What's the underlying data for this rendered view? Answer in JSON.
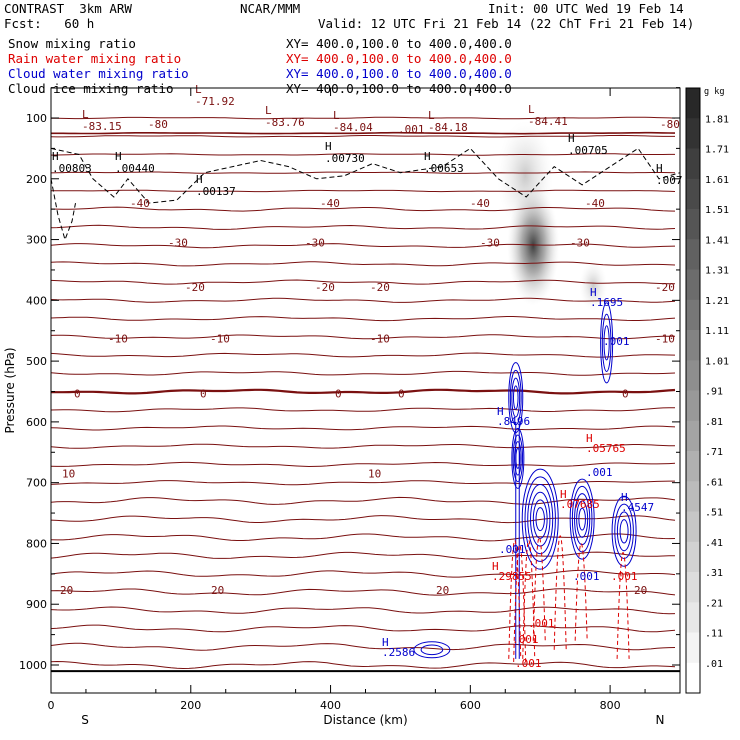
{
  "header": {
    "model": "CONTRAST  3km ARW",
    "org": "NCAR/MMM",
    "init": "Init: 00 UTC Wed 19 Feb 14",
    "fcst": "Fcst:   60 h",
    "valid": "Valid: 12 UTC Fri 21 Feb 14 (22 ChT Fri 21 Feb 14)"
  },
  "fields": [
    {
      "name": "Snow mixing ratio",
      "xy": "XY= 400.0,100.0 to 400.0,400.0",
      "color": "#000000"
    },
    {
      "name": "Rain water mixing ratio",
      "xy": "XY= 400.0,100.0 to 400.0,400.0",
      "color": "#dd0000"
    },
    {
      "name": "Cloud water mixing ratio",
      "xy": "XY= 400.0,100.0 to 400.0,400.0",
      "color": "#0000cc"
    },
    {
      "name": "Cloud ice mixing ratio",
      "xy": "XY= 400.0,100.0 to 400.0,400.0",
      "color": "#000000"
    }
  ],
  "chart_data": {
    "type": "cross-section contour",
    "xlabel": "Distance (km)",
    "ylabel": "Pressure (hPa)",
    "xlim": [
      0,
      900
    ],
    "ylim": [
      1000,
      50
    ],
    "x_ticks": [
      0,
      200,
      400,
      600,
      800
    ],
    "x_tick_labels": [
      "0",
      "200",
      "400",
      "600",
      "800"
    ],
    "y_ticks": [
      100,
      200,
      300,
      400,
      500,
      600,
      700,
      800,
      900,
      1000
    ],
    "y_tick_labels": [
      "100",
      "200",
      "300",
      "400",
      "500",
      "600",
      "700",
      "800",
      "900",
      "1000"
    ],
    "direction_left": "S",
    "direction_right": "N",
    "colorbar": {
      "unit": "g kg",
      "unit_exponent": "-1",
      "levels": [
        "1.81",
        "1.71",
        "1.61",
        "1.51",
        "1.41",
        "1.31",
        "1.21",
        "1.11",
        "1.01",
        ".91",
        ".81",
        ".71",
        ".61",
        ".51",
        ".41",
        ".31",
        ".21",
        ".11",
        ".01"
      ]
    },
    "temperature_contours": [
      {
        "value": -80,
        "pressure": 110
      },
      {
        "value": -40,
        "pressure": 240
      },
      {
        "value": -30,
        "pressure": 305
      },
      {
        "value": -20,
        "pressure": 378
      },
      {
        "value": -10,
        "pressure": 463
      },
      {
        "value": 0,
        "pressure": 553
      },
      {
        "value": 10,
        "pressure": 685
      },
      {
        "value": 20,
        "pressure": 877
      }
    ],
    "labels": {
      "temp_extremes": [
        "-71.92",
        "-83.15",
        "-83.76",
        "-84.04",
        "-84.18",
        "-84.41"
      ],
      "ice_maxima": [
        ".00803",
        ".00440",
        ".00137",
        ".00730",
        ".00653",
        ".00705",
        ".007"
      ],
      "cloud_water_maxima": [
        ".1695",
        ".8496",
        ".4547",
        ".2586"
      ],
      "rain_maxima": [
        ".05765",
        ".07685",
        ".29855"
      ],
      "small_values": [
        ".001"
      ],
      "contour_value_labels": [
        "-80",
        "-40",
        "-30",
        "-20",
        "-10",
        "0",
        "10",
        "20"
      ],
      "max_marker": "H",
      "min_marker": "L"
    },
    "snow_max_location": {
      "x_km": 690,
      "p_hpa": 310
    }
  }
}
